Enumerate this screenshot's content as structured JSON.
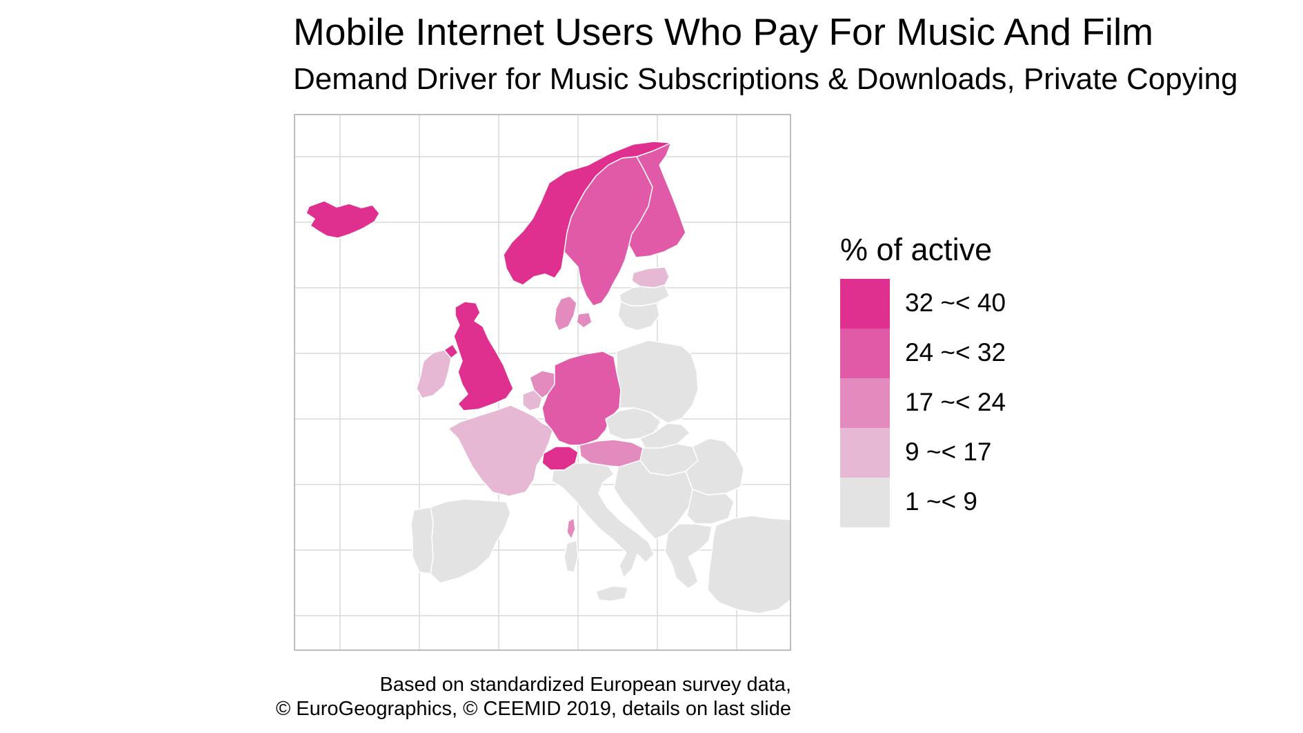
{
  "title": "Mobile Internet Users Who Pay For Music And Film",
  "subtitle": "Demand Driver for Music Subscriptions & Downloads, Private Copying",
  "legend": {
    "title": "% of active",
    "items": [
      {
        "label": "32 ~< 40",
        "color": "#e0308f"
      },
      {
        "label": "24 ~< 32",
        "color": "#e05aa8"
      },
      {
        "label": "17 ~< 24",
        "color": "#e38abf"
      },
      {
        "label": "9 ~< 17",
        "color": "#e6b8d3"
      },
      {
        "label": "1 ~< 9",
        "color": "#e3e3e3"
      }
    ]
  },
  "caption": {
    "line1": "Based on standardized European survey data,",
    "line2": "© EuroGeographics, © CEEMID 2019, details on last slide"
  },
  "countries": [
    {
      "name": "Iceland",
      "class": "32 ~< 40"
    },
    {
      "name": "Norway",
      "class": "32 ~< 40"
    },
    {
      "name": "United Kingdom",
      "class": "32 ~< 40"
    },
    {
      "name": "Switzerland",
      "class": "32 ~< 40"
    },
    {
      "name": "Sweden",
      "class": "24 ~< 32"
    },
    {
      "name": "Finland",
      "class": "24 ~< 32"
    },
    {
      "name": "Germany",
      "class": "24 ~< 32"
    },
    {
      "name": "Denmark",
      "class": "17 ~< 24"
    },
    {
      "name": "Netherlands",
      "class": "17 ~< 24"
    },
    {
      "name": "Austria",
      "class": "17 ~< 24"
    },
    {
      "name": "Corsica",
      "class": "17 ~< 24"
    },
    {
      "name": "Ireland",
      "class": "9 ~< 17"
    },
    {
      "name": "France",
      "class": "9 ~< 17"
    },
    {
      "name": "Estonia",
      "class": "9 ~< 17"
    },
    {
      "name": "Belgium",
      "class": "9 ~< 17"
    },
    {
      "name": "Spain",
      "class": "1 ~< 9"
    },
    {
      "name": "Portugal",
      "class": "1 ~< 9"
    },
    {
      "name": "Italy",
      "class": "1 ~< 9"
    },
    {
      "name": "Poland",
      "class": "1 ~< 9"
    },
    {
      "name": "Czechia",
      "class": "1 ~< 9"
    },
    {
      "name": "Slovakia",
      "class": "1 ~< 9"
    },
    {
      "name": "Hungary",
      "class": "1 ~< 9"
    },
    {
      "name": "Romania",
      "class": "1 ~< 9"
    },
    {
      "name": "Bulgaria",
      "class": "1 ~< 9"
    },
    {
      "name": "Greece",
      "class": "1 ~< 9"
    },
    {
      "name": "Turkey",
      "class": "1 ~< 9"
    },
    {
      "name": "Latvia",
      "class": "1 ~< 9"
    },
    {
      "name": "Lithuania",
      "class": "1 ~< 9"
    },
    {
      "name": "Balkans",
      "class": "1 ~< 9"
    }
  ]
}
